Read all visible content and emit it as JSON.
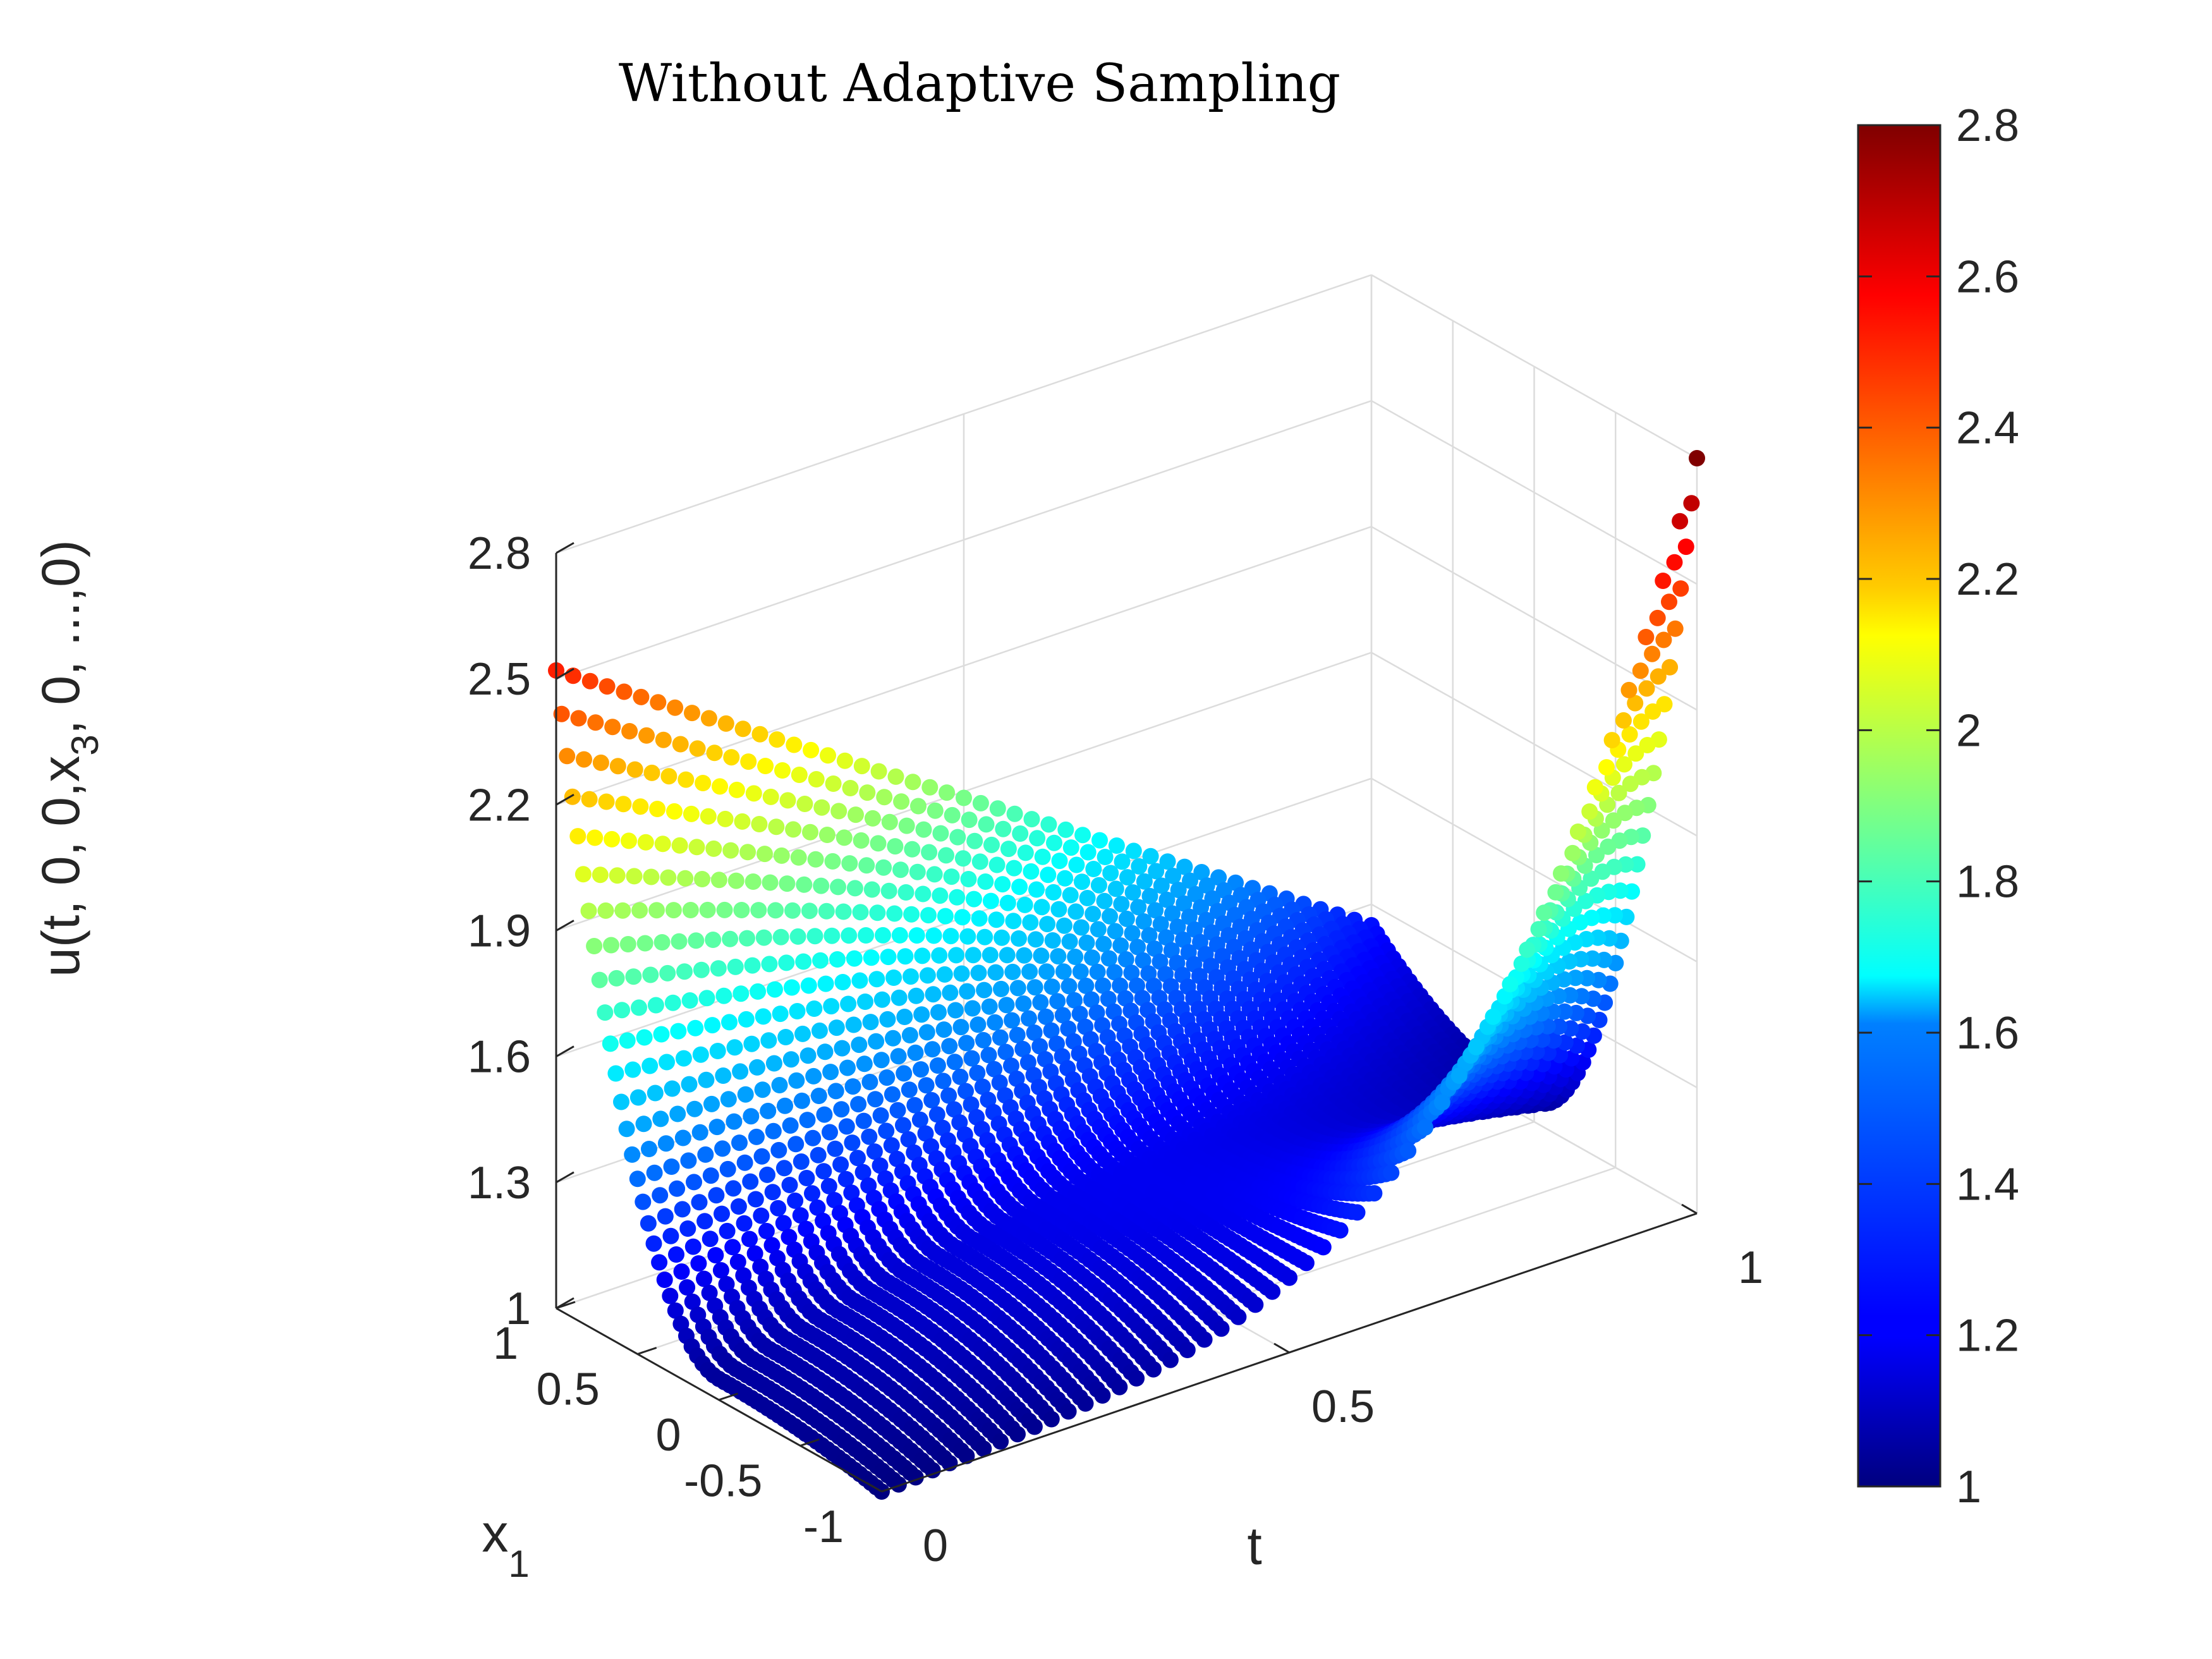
{
  "chart_data": {
    "type": "scatter",
    "title": "Without Adaptive Sampling",
    "xlabel": "t",
    "ylabel": "x",
    "ylabel_subscript": "1",
    "zlabel": "u(t, 0, 0,x",
    "zlabel_subscript": "3",
    "zlabel_tail": ", 0, ...,0)",
    "x_ticks": [
      "0",
      "0.5",
      "1"
    ],
    "y_ticks": [
      "-1",
      "-0.5",
      "0",
      "0.5",
      "1"
    ],
    "z_ticks": [
      "1",
      "1.3",
      "1.6",
      "1.9",
      "2.2",
      "2.5",
      "2.8"
    ],
    "xlim": [
      0,
      1
    ],
    "ylim": [
      -1,
      1
    ],
    "zlim": [
      1,
      2.8
    ],
    "grid": true,
    "colormap": "jet",
    "colorbar": {
      "location": "right",
      "limits": [
        1,
        2.8
      ],
      "ticks": [
        "1",
        "1.2",
        "1.4",
        "1.6",
        "1.8",
        "2",
        "2.2",
        "2.4",
        "2.6",
        "2.8"
      ]
    },
    "surface_samples": [
      {
        "t": 0,
        "x1": -1,
        "u": 1.0
      },
      {
        "t": 0,
        "x1": 1,
        "u": 2.52
      },
      {
        "t": 0.5,
        "x1": -1,
        "u": 1.1
      },
      {
        "t": 0.5,
        "x1": 1,
        "u": 2.05
      },
      {
        "t": 1,
        "x1": -1,
        "u": 2.8
      },
      {
        "t": 1,
        "x1": 0,
        "u": 1.2
      },
      {
        "t": 1,
        "x1": 1,
        "u": 1.25
      }
    ]
  }
}
